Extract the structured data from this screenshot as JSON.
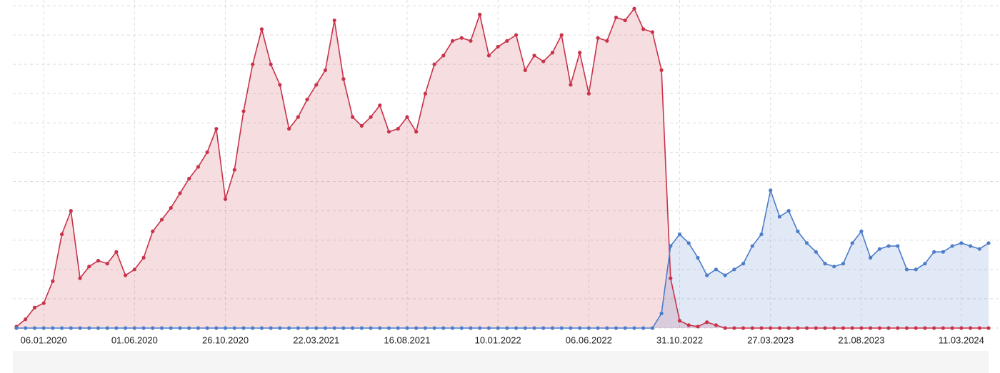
{
  "chart_data": {
    "type": "area",
    "categories": [
      null,
      null,
      null,
      "06.01.2020",
      null,
      null,
      null,
      null,
      null,
      null,
      null,
      null,
      null,
      "01.06.2020",
      null,
      null,
      null,
      null,
      null,
      null,
      null,
      null,
      null,
      "26.10.2020",
      null,
      null,
      null,
      null,
      null,
      null,
      null,
      null,
      null,
      "22.03.2021",
      null,
      null,
      null,
      null,
      null,
      null,
      null,
      null,
      null,
      "16.08.2021",
      null,
      null,
      null,
      null,
      null,
      null,
      null,
      null,
      null,
      "10.01.2022",
      null,
      null,
      null,
      null,
      null,
      null,
      null,
      null,
      null,
      "06.06.2022",
      null,
      null,
      null,
      null,
      null,
      null,
      null,
      null,
      null,
      "31.10.2022",
      null,
      null,
      null,
      null,
      null,
      null,
      null,
      null,
      null,
      "27.03.2023",
      null,
      null,
      null,
      null,
      null,
      null,
      null,
      null,
      null,
      "21.08.2023",
      null,
      null,
      null,
      null,
      null,
      null,
      null,
      null,
      null,
      null,
      "11.03.2024",
      null,
      null,
      null
    ],
    "series": [
      {
        "color": "#c8334a",
        "values": [
          0.05,
          0.3,
          0.7,
          0.85,
          1.6,
          3.2,
          4.0,
          1.7,
          2.1,
          2.3,
          2.2,
          2.6,
          1.8,
          2.0,
          2.4,
          3.3,
          3.7,
          4.1,
          4.6,
          5.1,
          5.5,
          6.0,
          6.8,
          4.4,
          5.4,
          7.4,
          9.0,
          10.2,
          9.0,
          8.3,
          6.8,
          7.2,
          7.8,
          8.3,
          8.8,
          10.5,
          8.5,
          7.2,
          6.9,
          7.2,
          7.6,
          6.7,
          6.8,
          7.2,
          6.7,
          8.0,
          9.0,
          9.3,
          9.8,
          9.9,
          9.8,
          10.7,
          9.3,
          9.6,
          9.8,
          10.0,
          8.8,
          9.3,
          9.1,
          9.4,
          10.0,
          8.3,
          9.4,
          8.0,
          9.9,
          9.8,
          10.6,
          10.5,
          10.9,
          10.2,
          10.1,
          8.8,
          1.7,
          0.25,
          0.1,
          0.05,
          0.2,
          0.1,
          0,
          0,
          0,
          0,
          0,
          0,
          0,
          0,
          0,
          0,
          0,
          0,
          0,
          0,
          0,
          0,
          0,
          0,
          0,
          0,
          0,
          0,
          0,
          0,
          0,
          0,
          0,
          0,
          0,
          0
        ]
      },
      {
        "color": "#4d7cc9",
        "values": [
          0,
          0,
          0,
          0,
          0,
          0,
          0,
          0,
          0,
          0,
          0,
          0,
          0,
          0,
          0,
          0,
          0,
          0,
          0,
          0,
          0,
          0,
          0,
          0,
          0,
          0,
          0,
          0,
          0,
          0,
          0,
          0,
          0,
          0,
          0,
          0,
          0,
          0,
          0,
          0,
          0,
          0,
          0,
          0,
          0,
          0,
          0,
          0,
          0,
          0,
          0,
          0,
          0,
          0,
          0,
          0,
          0,
          0,
          0,
          0,
          0,
          0,
          0,
          0,
          0,
          0,
          0,
          0,
          0,
          0,
          0,
          0.5,
          2.8,
          3.2,
          2.9,
          2.4,
          1.8,
          2.0,
          1.8,
          2.0,
          2.2,
          2.8,
          3.2,
          4.7,
          3.8,
          4.0,
          3.3,
          2.9,
          2.6,
          2.2,
          2.1,
          2.2,
          2.9,
          3.3,
          2.4,
          2.7,
          2.8,
          2.8,
          2.0,
          2.0,
          2.2,
          2.6,
          2.6,
          2.8,
          2.9,
          2.8,
          2.7,
          2.9
        ]
      }
    ],
    "ylim": [
      0,
      11
    ],
    "yticks": [
      0,
      1,
      2,
      3,
      4,
      5,
      6,
      7,
      8,
      9,
      10,
      11
    ],
    "grid": true
  }
}
